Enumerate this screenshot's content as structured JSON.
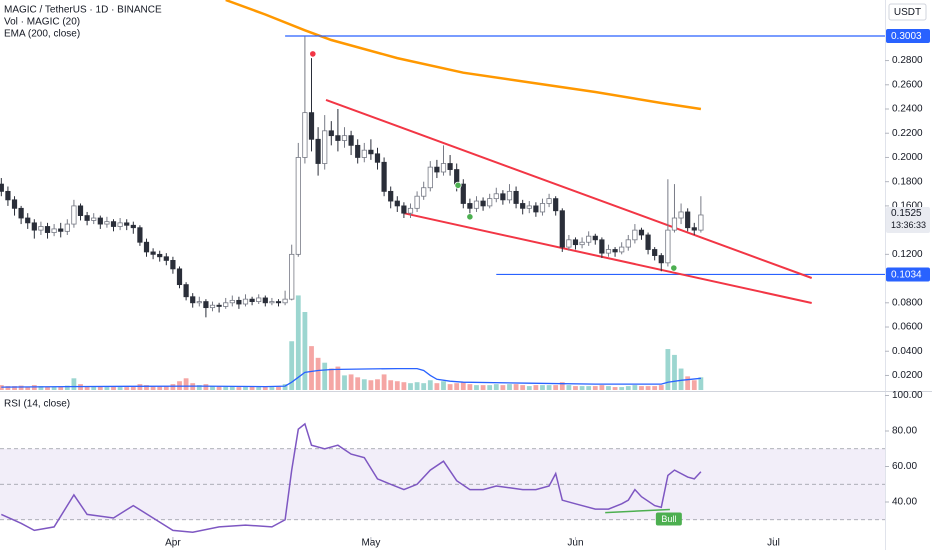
{
  "chart_data": {
    "type": "candlestick",
    "title": "MAGIC / TetherUS · 1D · BINANCE",
    "volume_label": "Vol · MAGIC (20)",
    "ema_label": "EMA (200, close)",
    "currency": "USDT",
    "countdown": "13:36:33",
    "x": [
      0,
      1,
      2,
      3,
      4,
      5,
      6,
      7,
      8,
      9,
      10,
      11,
      12,
      13,
      14,
      15,
      16,
      17,
      18,
      19,
      20,
      21,
      22,
      23,
      24,
      25,
      26,
      27,
      28,
      29,
      30,
      31,
      32,
      33,
      34,
      35,
      36,
      37,
      38,
      39,
      40,
      41,
      42,
      43,
      44,
      45,
      46,
      47,
      48,
      49,
      50,
      51,
      52,
      53,
      54,
      55,
      56,
      57,
      58,
      59,
      60,
      61,
      62,
      63,
      64,
      65,
      66,
      67,
      68,
      69,
      70,
      71,
      72,
      73,
      74,
      75,
      76,
      77,
      78,
      79,
      80,
      81,
      82,
      83,
      84,
      85,
      86,
      87,
      88,
      89,
      90,
      91,
      92,
      93,
      94,
      95,
      96,
      97,
      98,
      99,
      100,
      101,
      102,
      103,
      104,
      105,
      106
    ],
    "open": [
      0.178,
      0.172,
      0.165,
      0.158,
      0.15,
      0.146,
      0.14,
      0.143,
      0.138,
      0.141,
      0.139,
      0.145,
      0.16,
      0.152,
      0.148,
      0.15,
      0.145,
      0.147,
      0.143,
      0.146,
      0.144,
      0.142,
      0.13,
      0.122,
      0.12,
      0.118,
      0.115,
      0.108,
      0.095,
      0.085,
      0.08,
      0.081,
      0.076,
      0.078,
      0.077,
      0.08,
      0.082,
      0.079,
      0.083,
      0.081,
      0.084,
      0.08,
      0.081,
      0.08,
      0.083,
      0.12,
      0.2,
      0.237,
      0.215,
      0.195,
      0.222,
      0.218,
      0.214,
      0.218,
      0.21,
      0.2,
      0.206,
      0.203,
      0.196,
      0.172,
      0.164,
      0.16,
      0.154,
      0.158,
      0.168,
      0.175,
      0.192,
      0.188,
      0.195,
      0.19,
      0.178,
      0.162,
      0.158,
      0.164,
      0.16,
      0.166,
      0.17,
      0.165,
      0.172,
      0.162,
      0.158,
      0.16,
      0.155,
      0.162,
      0.166,
      0.156,
      0.126,
      0.132,
      0.128,
      0.13,
      0.135,
      0.132,
      0.121,
      0.124,
      0.122,
      0.126,
      0.132,
      0.14,
      0.136,
      0.124,
      0.119,
      0.113,
      0.14,
      0.15,
      0.155,
      0.142,
      0.14
    ],
    "high": [
      0.183,
      0.176,
      0.168,
      0.16,
      0.154,
      0.149,
      0.147,
      0.146,
      0.145,
      0.146,
      0.149,
      0.165,
      0.162,
      0.155,
      0.154,
      0.152,
      0.151,
      0.149,
      0.15,
      0.149,
      0.147,
      0.144,
      0.133,
      0.125,
      0.123,
      0.121,
      0.118,
      0.11,
      0.097,
      0.088,
      0.085,
      0.083,
      0.081,
      0.08,
      0.084,
      0.086,
      0.085,
      0.087,
      0.085,
      0.087,
      0.086,
      0.084,
      0.083,
      0.09,
      0.128,
      0.212,
      0.3,
      0.282,
      0.225,
      0.235,
      0.23,
      0.24,
      0.225,
      0.222,
      0.215,
      0.212,
      0.215,
      0.208,
      0.2,
      0.176,
      0.168,
      0.163,
      0.162,
      0.172,
      0.18,
      0.197,
      0.198,
      0.21,
      0.202,
      0.195,
      0.182,
      0.166,
      0.168,
      0.167,
      0.17,
      0.175,
      0.173,
      0.178,
      0.176,
      0.165,
      0.164,
      0.163,
      0.166,
      0.17,
      0.168,
      0.158,
      0.136,
      0.134,
      0.134,
      0.139,
      0.137,
      0.134,
      0.128,
      0.126,
      0.13,
      0.136,
      0.145,
      0.142,
      0.138,
      0.126,
      0.121,
      0.182,
      0.178,
      0.162,
      0.158,
      0.146,
      0.168
    ],
    "low": [
      0.168,
      0.16,
      0.152,
      0.145,
      0.141,
      0.133,
      0.136,
      0.133,
      0.135,
      0.134,
      0.136,
      0.142,
      0.148,
      0.144,
      0.145,
      0.141,
      0.142,
      0.139,
      0.14,
      0.14,
      0.137,
      0.127,
      0.118,
      0.116,
      0.114,
      0.111,
      0.104,
      0.092,
      0.082,
      0.076,
      0.077,
      0.068,
      0.073,
      0.072,
      0.075,
      0.077,
      0.075,
      0.077,
      0.078,
      0.079,
      0.077,
      0.078,
      0.077,
      0.078,
      0.082,
      0.118,
      0.195,
      0.205,
      0.185,
      0.19,
      0.21,
      0.205,
      0.208,
      0.202,
      0.195,
      0.196,
      0.198,
      0.19,
      0.168,
      0.158,
      0.155,
      0.15,
      0.15,
      0.155,
      0.165,
      0.172,
      0.183,
      0.185,
      0.185,
      0.172,
      0.158,
      0.15,
      0.155,
      0.156,
      0.158,
      0.163,
      0.161,
      0.162,
      0.158,
      0.153,
      0.154,
      0.151,
      0.152,
      0.159,
      0.152,
      0.122,
      0.123,
      0.124,
      0.125,
      0.127,
      0.128,
      0.117,
      0.118,
      0.118,
      0.12,
      0.123,
      0.129,
      0.132,
      0.12,
      0.115,
      0.106,
      0.11,
      0.138,
      0.145,
      0.139,
      0.136,
      0.138
    ],
    "close": [
      0.172,
      0.165,
      0.158,
      0.15,
      0.146,
      0.14,
      0.143,
      0.138,
      0.141,
      0.139,
      0.145,
      0.16,
      0.152,
      0.148,
      0.15,
      0.145,
      0.147,
      0.143,
      0.146,
      0.144,
      0.142,
      0.13,
      0.122,
      0.12,
      0.118,
      0.115,
      0.108,
      0.095,
      0.085,
      0.08,
      0.081,
      0.076,
      0.078,
      0.077,
      0.08,
      0.082,
      0.079,
      0.083,
      0.081,
      0.084,
      0.08,
      0.081,
      0.08,
      0.083,
      0.12,
      0.2,
      0.237,
      0.215,
      0.195,
      0.222,
      0.218,
      0.214,
      0.218,
      0.21,
      0.2,
      0.206,
      0.203,
      0.196,
      0.172,
      0.164,
      0.16,
      0.154,
      0.158,
      0.168,
      0.175,
      0.192,
      0.188,
      0.195,
      0.19,
      0.178,
      0.162,
      0.158,
      0.164,
      0.16,
      0.166,
      0.17,
      0.165,
      0.172,
      0.162,
      0.158,
      0.16,
      0.155,
      0.162,
      0.166,
      0.156,
      0.126,
      0.132,
      0.128,
      0.13,
      0.135,
      0.132,
      0.121,
      0.124,
      0.122,
      0.126,
      0.132,
      0.14,
      0.136,
      0.124,
      0.119,
      0.113,
      0.14,
      0.15,
      0.155,
      0.142,
      0.14,
      0.1525
    ],
    "volume": [
      0.5,
      0.4,
      0.4,
      0.45,
      0.35,
      0.5,
      0.4,
      0.35,
      0.3,
      0.35,
      0.45,
      1.2,
      0.6,
      0.4,
      0.35,
      0.4,
      0.3,
      0.35,
      0.3,
      0.3,
      0.35,
      0.6,
      0.5,
      0.4,
      0.35,
      0.4,
      0.6,
      0.9,
      1.2,
      0.7,
      0.5,
      0.6,
      0.4,
      0.35,
      0.4,
      0.35,
      0.3,
      0.4,
      0.35,
      0.3,
      0.3,
      0.3,
      0.35,
      0.6,
      5,
      9.7,
      8,
      4.5,
      3.3,
      2.8,
      2.2,
      2.4,
      1.5,
      1.6,
      1.3,
      1.1,
      1.0,
      1.1,
      1.6,
      1.0,
      0.9,
      0.8,
      0.7,
      0.8,
      0.7,
      1.0,
      0.7,
      0.9,
      0.6,
      0.7,
      0.8,
      0.6,
      0.5,
      0.5,
      0.5,
      0.6,
      0.5,
      0.6,
      0.6,
      0.5,
      0.4,
      0.5,
      0.5,
      0.5,
      0.5,
      0.8,
      0.5,
      0.4,
      0.4,
      0.4,
      0.4,
      0.5,
      0.4,
      0.3,
      0.3,
      0.4,
      0.5,
      0.4,
      0.4,
      0.4,
      0.5,
      4.2,
      3.6,
      2.2,
      1.4,
      1.0,
      1.3
    ],
    "volume_lim": [
      0,
      40
    ],
    "volume_ma": {
      "color": "#2962ff",
      "x": [
        0,
        10,
        20,
        30,
        40,
        43,
        44,
        45,
        46,
        48,
        50,
        55,
        60,
        63,
        64,
        65,
        66,
        68,
        70,
        80,
        90,
        100,
        101,
        103,
        106
      ],
      "values": [
        0.3,
        0.35,
        0.38,
        0.4,
        0.35,
        0.4,
        0.8,
        1.3,
        1.8,
        2.0,
        2.1,
        2.15,
        2.2,
        2.2,
        2.0,
        1.5,
        1.1,
        0.9,
        0.8,
        0.7,
        0.6,
        0.6,
        0.8,
        1.0,
        1.2
      ]
    },
    "up_color": "#ffffff",
    "down_color": "#2a2e39",
    "wick_color": "#787b86",
    "up_volume_color": "#9cd6d0",
    "down_volume_color": "#f5a6a4",
    "ema": {
      "color": "#ff9800",
      "x": [
        34,
        40,
        46,
        50,
        60,
        70,
        80,
        90,
        100,
        106
      ],
      "values": [
        0.33,
        0.318,
        0.305,
        0.297,
        0.282,
        0.27,
        0.262,
        0.254,
        0.245,
        0.24
      ]
    },
    "trendlines": [
      {
        "color": "#f23645",
        "x": [
          49.2,
          122.8
        ],
        "y": [
          0.2475,
          0.1005
        ]
      },
      {
        "color": "#f23645",
        "x": [
          61,
          122.8
        ],
        "y": [
          0.154,
          0.0798
        ]
      }
    ],
    "price_lines": [
      {
        "value": 0.3003,
        "x_start": 43,
        "color": "#2962ff"
      },
      {
        "value": 0.1034,
        "x_start": 75,
        "color": "#2962ff"
      }
    ],
    "signals": [
      {
        "x": 47.2,
        "y": 0.2855,
        "color": "#f23645"
      },
      {
        "x": 69.2,
        "y": 0.177,
        "color": "#4caf50"
      },
      {
        "x": 71,
        "y": 0.151,
        "color": "#4caf50"
      },
      {
        "x": 101.9,
        "y": 0.1087,
        "color": "#4caf50"
      }
    ],
    "xlim": [
      -0.2,
      133.9
    ],
    "xticks": [
      {
        "value": 26,
        "label": "Apr"
      },
      {
        "value": 56,
        "label": "May"
      },
      {
        "value": 87,
        "label": "Jun"
      },
      {
        "value": 117,
        "label": "Jul"
      }
    ],
    "ylim": [
      0.008,
      0.33
    ],
    "yticks": [
      {
        "value": 0.02,
        "label": "0.0200"
      },
      {
        "value": 0.04,
        "label": "0.0400"
      },
      {
        "value": 0.06,
        "label": "0.0600"
      },
      {
        "value": 0.08,
        "label": "0.0800"
      },
      {
        "value": 0.12,
        "label": "0.1200"
      },
      {
        "value": 0.16,
        "label": "0.1600"
      },
      {
        "value": 0.18,
        "label": "0.1800"
      },
      {
        "value": 0.2,
        "label": "0.2000"
      },
      {
        "value": 0.22,
        "label": "0.2200"
      },
      {
        "value": 0.24,
        "label": "0.2400"
      },
      {
        "value": 0.26,
        "label": "0.2600"
      },
      {
        "value": 0.28,
        "label": "0.2800"
      }
    ],
    "rsi": {
      "label": "RSI (14, close)",
      "color": "#7e57c2",
      "x": [
        0,
        3,
        5,
        8,
        11,
        13,
        17,
        20,
        23,
        26,
        29,
        33,
        37,
        41,
        43,
        44,
        45,
        46,
        47,
        49,
        51,
        53,
        55,
        57,
        59,
        61,
        63,
        65,
        67,
        69,
        71,
        73,
        75,
        77,
        79,
        81,
        83,
        84,
        85,
        87,
        90,
        92,
        94,
        95,
        96,
        97,
        99,
        100,
        101,
        102,
        104,
        105,
        106
      ],
      "values": [
        33,
        28,
        24,
        26,
        44,
        33,
        31,
        38,
        31,
        24,
        23,
        26,
        27,
        26,
        30,
        58,
        81,
        84,
        72,
        70,
        72,
        67,
        65,
        53,
        50,
        47,
        50,
        58,
        63,
        52,
        47,
        47,
        49,
        48,
        47,
        47,
        49,
        56,
        41,
        39,
        36,
        36,
        39,
        41,
        47,
        43,
        38,
        37,
        55,
        58,
        54,
        53,
        57
      ],
      "ylim": [
        20,
        100
      ],
      "yticks": [
        {
          "value": 40,
          "label": "40.00"
        },
        {
          "value": 60,
          "label": "60.00"
        },
        {
          "value": 80,
          "label": "80.00"
        },
        {
          "value": 100,
          "label": "100.00"
        }
      ],
      "bands": [
        30,
        50,
        70
      ],
      "divergence": {
        "label": "Bull",
        "color": "#4caf50",
        "x": [
          91.5,
          101.3
        ],
        "y": [
          34,
          35.8
        ]
      }
    }
  }
}
